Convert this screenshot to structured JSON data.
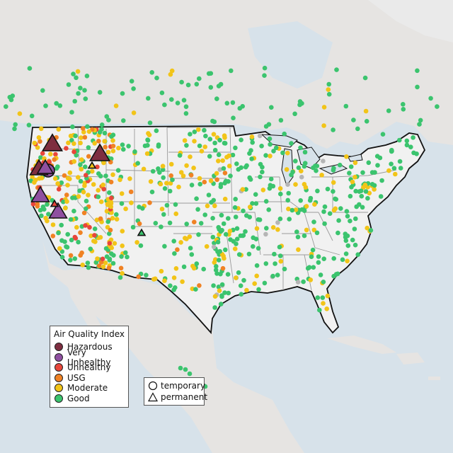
{
  "legend_aqi": {
    "title": "Air Quality Index",
    "items": [
      {
        "label": "Hazardous",
        "color": "#7e2e40"
      },
      {
        "label": "Very Unhealthy",
        "color": "#8f4fa0"
      },
      {
        "label": "Unhealthy",
        "color": "#e8463a"
      },
      {
        "label": "USG",
        "color": "#f08224"
      },
      {
        "label": "Moderate",
        "color": "#f2c418"
      },
      {
        "label": "Good",
        "color": "#3bc46e"
      }
    ]
  },
  "legend_type": {
    "items": [
      {
        "label": "temporary",
        "shape": "circle"
      },
      {
        "label": "permanent",
        "shape": "triangle"
      }
    ]
  },
  "colors": {
    "land_us": "#f1f1f1",
    "land_other": "#e3e3e3",
    "water": "#d6e2ea",
    "border": "#111111",
    "state_lines": "#9a9a9a",
    "gray_monitor": "#b5b5b5"
  }
}
